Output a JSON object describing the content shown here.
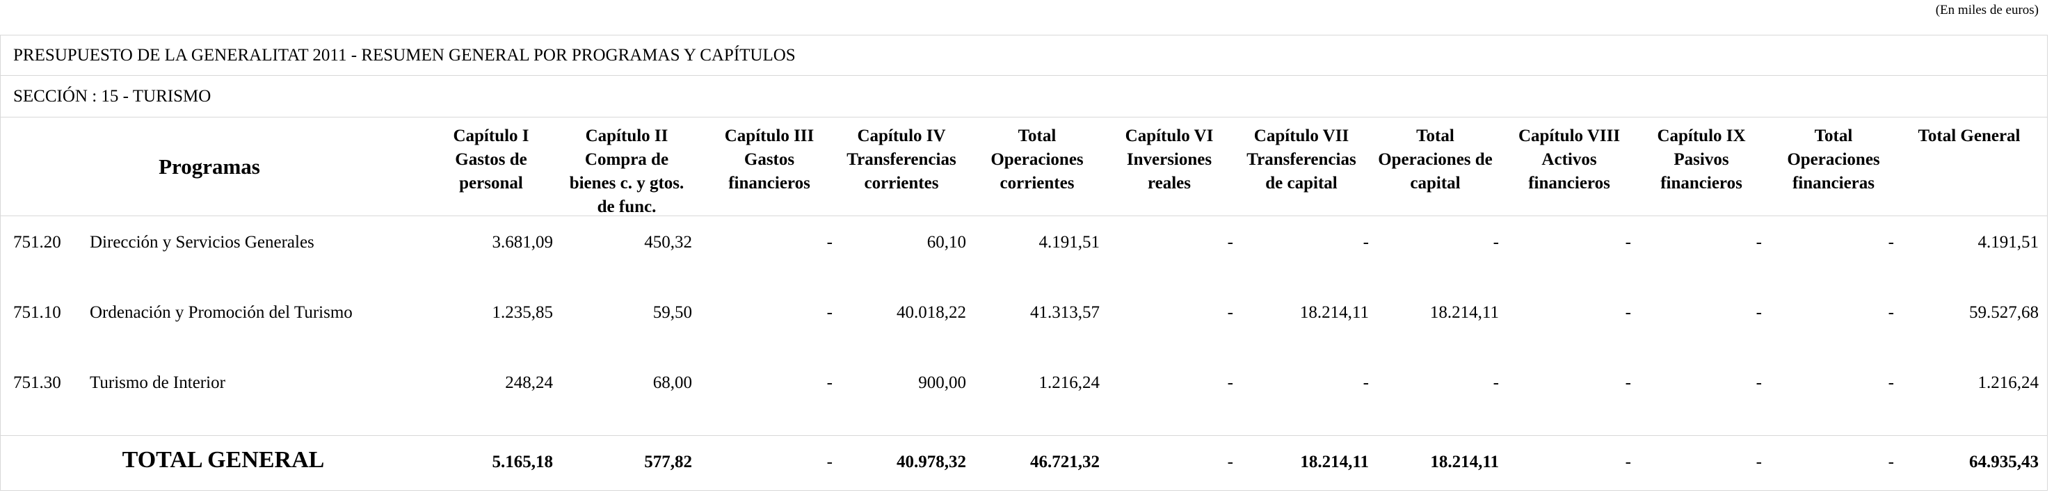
{
  "units_note": "(En miles de euros)",
  "title": "PRESUPUESTO DE LA GENERALITAT 2011 - RESUMEN GENERAL POR PROGRAMAS Y CAPÍTULOS",
  "section": "SECCIÓN : 15  -  TURISMO",
  "headers": {
    "programas": "Programas",
    "cap1": "Capítulo I\nGastos de\npersonal",
    "cap2": "Capítulo II\nCompra de\nbienes c. y gtos.\nde func.",
    "cap3": "Capítulo III\nGastos\nfinancieros",
    "cap4": "Capítulo IV\nTransferencias\ncorrientes",
    "tot_corr": "Total\nOperaciones\ncorrientes",
    "cap6": "Capítulo VI\nInversiones\nreales",
    "cap7": "Capítulo VII\nTransferencias\nde capital",
    "tot_cap": "Total\nOperaciones de\ncapital",
    "cap8": "Capítulo VIII\nActivos\nfinancieros",
    "cap9": "Capítulo IX\nPasivos\nfinancieros",
    "tot_fin": "Total\nOperaciones\nfinancieras",
    "total_general": "Total General"
  },
  "rows": [
    {
      "code": "751.20",
      "name": "Dirección y Servicios Generales",
      "cap1": "3.681,09",
      "cap2": "450,32",
      "cap3": "-",
      "cap4": "60,10",
      "tot_corr": "4.191,51",
      "cap6": "-",
      "cap7": "-",
      "tot_cap": "-",
      "cap8": "-",
      "cap9": "-",
      "tot_fin": "-",
      "total_general": "4.191,51"
    },
    {
      "code": "751.10",
      "name": "Ordenación y Promoción del Turismo",
      "cap1": "1.235,85",
      "cap2": "59,50",
      "cap3": "-",
      "cap4": "40.018,22",
      "tot_corr": "41.313,57",
      "cap6": "-",
      "cap7": "18.214,11",
      "tot_cap": "18.214,11",
      "cap8": "-",
      "cap9": "-",
      "tot_fin": "-",
      "total_general": "59.527,68"
    },
    {
      "code": "751.30",
      "name": "Turismo de Interior",
      "cap1": "248,24",
      "cap2": "68,00",
      "cap3": "-",
      "cap4": "900,00",
      "tot_corr": "1.216,24",
      "cap6": "-",
      "cap7": "-",
      "tot_cap": "-",
      "cap8": "-",
      "cap9": "-",
      "tot_fin": "-",
      "total_general": "1.216,24"
    }
  ],
  "total": {
    "label": "TOTAL GENERAL",
    "cap1": "5.165,18",
    "cap2": "577,82",
    "cap3": "-",
    "cap4": "40.978,32",
    "tot_corr": "46.721,32",
    "cap6": "-",
    "cap7": "18.214,11",
    "tot_cap": "18.214,11",
    "cap8": "-",
    "cap9": "-",
    "tot_fin": "-",
    "total_general": "64.935,43"
  }
}
